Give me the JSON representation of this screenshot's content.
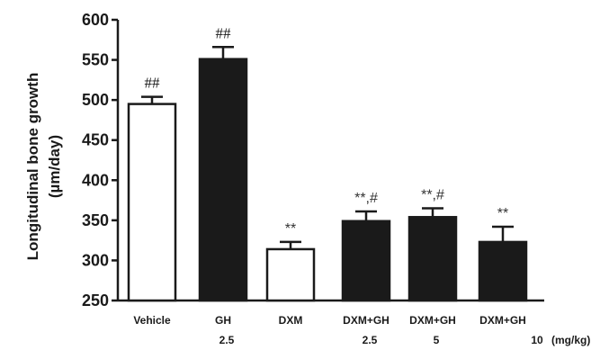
{
  "chart_data": {
    "type": "bar",
    "ylabel_line1": "Longitudinal bone growth",
    "ylabel_line2": "(µm/day)",
    "ylim": [
      250,
      600
    ],
    "yticks": [
      "250",
      "300",
      "350",
      "400",
      "450",
      "500",
      "550",
      "600"
    ],
    "unit_label": "(mg/kg)",
    "categories": [
      {
        "name": "Vehicle",
        "dose": "",
        "value": 495,
        "error": 9,
        "fill": "open",
        "annotation": "##"
      },
      {
        "name": "GH",
        "dose": "2.5",
        "value": 551,
        "error": 15,
        "fill": "solid",
        "annotation": "##"
      },
      {
        "name": "DXM",
        "dose": "",
        "value": 314,
        "error": 9,
        "fill": "open",
        "annotation": "**"
      },
      {
        "name": "DXM+GH",
        "dose": "2.5",
        "value": 349,
        "error": 12,
        "fill": "solid",
        "annotation": "**,#"
      },
      {
        "name": "DXM+GH",
        "dose": "5",
        "value": 354,
        "error": 11,
        "fill": "solid",
        "annotation": "**,#"
      },
      {
        "name": "DXM+GH",
        "dose": "10",
        "value": 323,
        "error": 19,
        "fill": "solid",
        "annotation": "**"
      }
    ],
    "colors": {
      "solid": "#1a1a1a",
      "open": "#ffffff",
      "stroke": "#1a1a1a"
    }
  }
}
